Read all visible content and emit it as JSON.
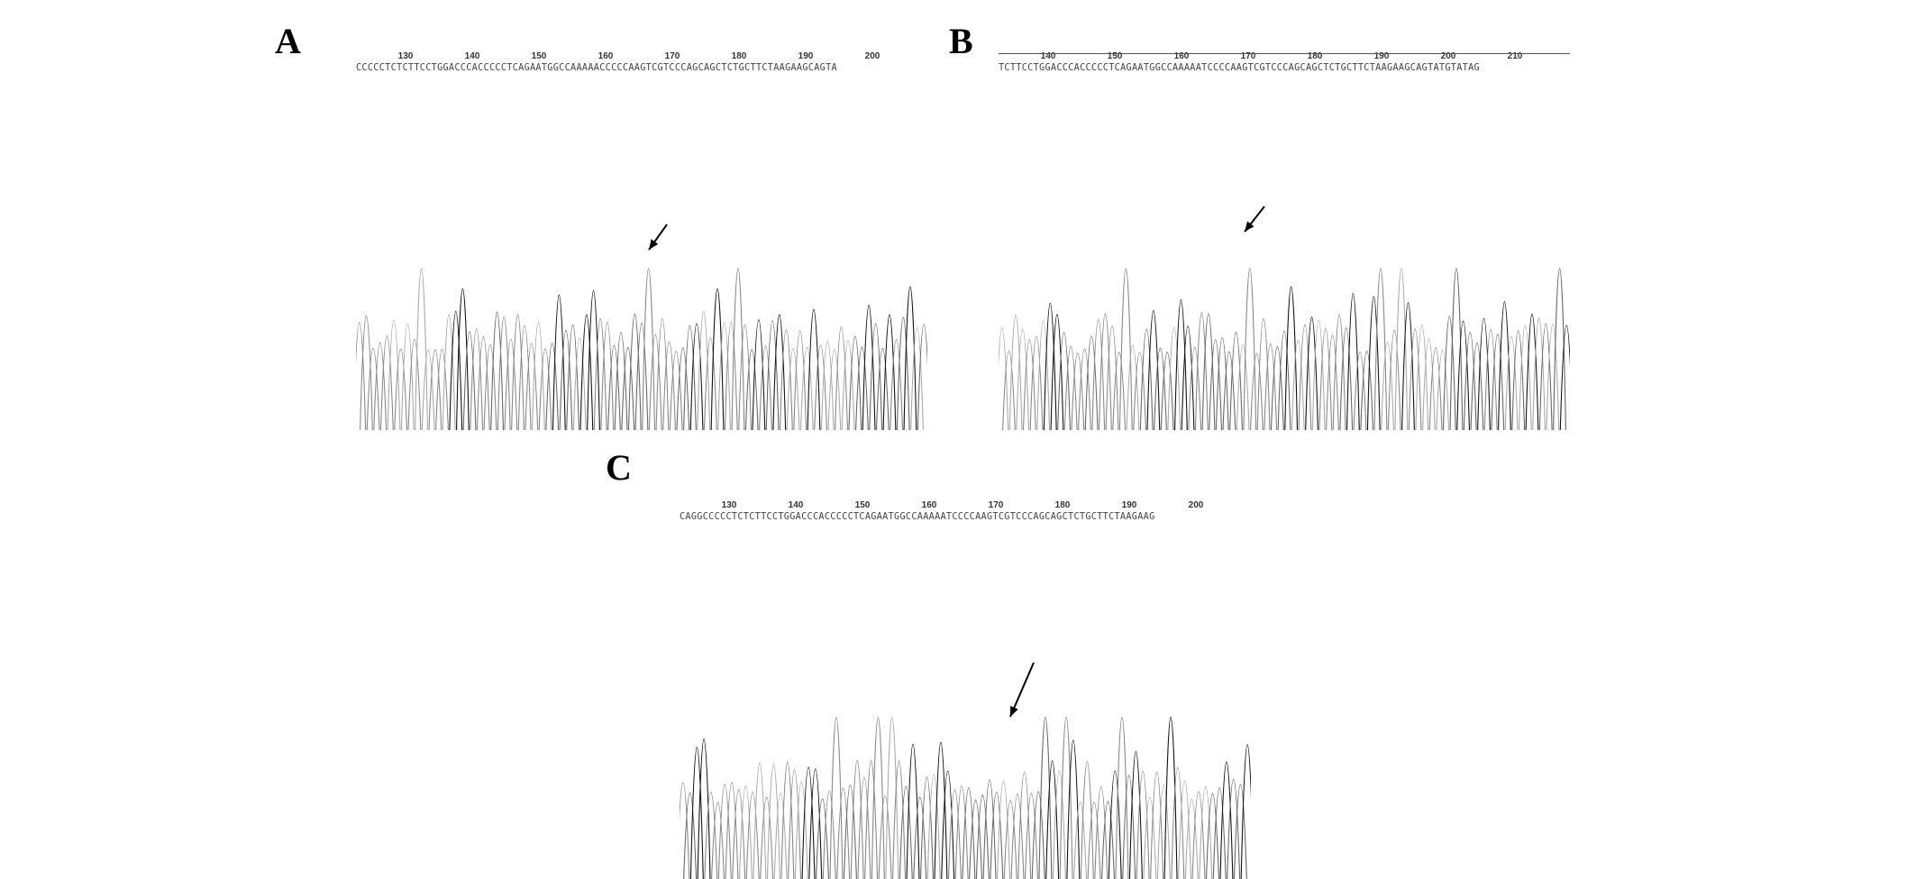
{
  "panels": [
    {
      "label": "A",
      "ticks": [
        "130",
        "140",
        "150",
        "160",
        "170",
        "180",
        "190",
        "200"
      ],
      "sequence": "CCCCCTCTCTTCCTGGACCCACCCCCTCAGAATGGCCAAAAACCCCCAAGTCGTCCCAGCAGCTCTGCTTCTAAGAAGCAGTA",
      "ruler": false
    },
    {
      "label": "B",
      "ticks": [
        "140",
        "150",
        "160",
        "170",
        "180",
        "190",
        "200",
        "210"
      ],
      "sequence": "TCTTCCTGGACCCACCCCCTCAGAATGGCCAAAAATCCCCAAGTCGTCCCAGCAGCTCTGCTTCTAAGAAGCAGTATGTATAG",
      "ruler": true
    },
    {
      "label": "C",
      "ticks": [
        "130",
        "140",
        "150",
        "160",
        "170",
        "180",
        "190",
        "200"
      ],
      "sequence": "CAGGCCCCCTCTCTTCCTGGACCCACCCCCTCAGAATGGCCAAAAATCCCCAAGTCGTCCCAGCAGCTCTGCTTCTAAGAAG",
      "ruler": false
    }
  ]
}
